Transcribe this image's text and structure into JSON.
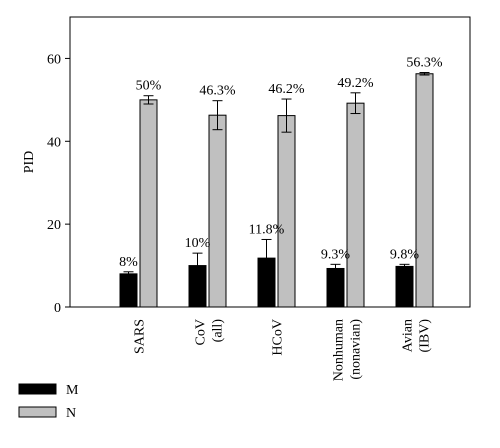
{
  "chart_data": {
    "type": "bar",
    "ylabel": "PID",
    "ylim": [
      0,
      70
    ],
    "yticks": [
      0,
      20,
      40,
      60
    ],
    "categories": [
      "SARS",
      "CoV (all)",
      "HCoV",
      "Nonhuman (nonavian)",
      "Avian (IBV)"
    ],
    "category_lines": [
      [
        "SARS"
      ],
      [
        "CoV",
        "(all)"
      ],
      [
        "HCoV"
      ],
      [
        "Nonhuman",
        "(nonavian)"
      ],
      [
        "Avian",
        "(IBV)"
      ]
    ],
    "series": [
      {
        "name": "M",
        "color": "#000000",
        "values": [
          8,
          10,
          11.8,
          9.3,
          9.8
        ],
        "errors": [
          0.5,
          3,
          4.5,
          1,
          0.5
        ],
        "labels": [
          "8%",
          "10%",
          "11.8%",
          "9.3%",
          "9.8%"
        ]
      },
      {
        "name": "N",
        "color": "#c0c0c0",
        "values": [
          50,
          46.3,
          46.2,
          49.2,
          56.3
        ],
        "errors": [
          1,
          3.5,
          4,
          2.5,
          0.3
        ],
        "labels": [
          "50%",
          "46.3%",
          "46.2%",
          "49.2%",
          "56.3%"
        ]
      }
    ],
    "legend": {
      "position": "bottom-left",
      "entries": [
        "M",
        "N"
      ]
    }
  }
}
